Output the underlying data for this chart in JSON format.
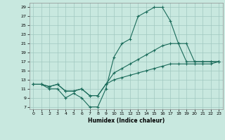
{
  "title": "",
  "xlabel": "Humidex (Indice chaleur)",
  "background_color": "#c8e8df",
  "grid_color": "#a0c8c0",
  "line_color": "#1a6b5a",
  "x_ticks": [
    0,
    1,
    2,
    3,
    4,
    5,
    6,
    7,
    8,
    9,
    10,
    11,
    12,
    13,
    14,
    15,
    16,
    17,
    18,
    19,
    20,
    21,
    22,
    23
  ],
  "y_ticks": [
    7,
    9,
    11,
    13,
    15,
    17,
    19,
    21,
    23,
    25,
    27,
    29
  ],
  "ylim": [
    6.5,
    30
  ],
  "xlim": [
    -0.5,
    23.5
  ],
  "line1_x": [
    0,
    1,
    2,
    3,
    4,
    5,
    6,
    7,
    8,
    9,
    10,
    11,
    12,
    13,
    14,
    15,
    16,
    17,
    18,
    19,
    20,
    21,
    22,
    23
  ],
  "line1_y": [
    12,
    12,
    11,
    11,
    9,
    10,
    9,
    7,
    7,
    11,
    18,
    21,
    22,
    27,
    28,
    29,
    29,
    26,
    21,
    17,
    17,
    17,
    17,
    17
  ],
  "line2_x": [
    0,
    1,
    2,
    3,
    4,
    5,
    6,
    7,
    8,
    9,
    10,
    11,
    12,
    13,
    14,
    15,
    16,
    17,
    18,
    19,
    20,
    21,
    22,
    23
  ],
  "line2_y": [
    12,
    12,
    11.5,
    12,
    10.5,
    10.5,
    11,
    9.5,
    9.5,
    12,
    14.5,
    15.5,
    16.5,
    17.5,
    18.5,
    19.5,
    20.5,
    21,
    21,
    21,
    17,
    17,
    17,
    17
  ],
  "line3_x": [
    0,
    1,
    2,
    3,
    4,
    5,
    6,
    7,
    8,
    9,
    10,
    11,
    12,
    13,
    14,
    15,
    16,
    17,
    18,
    19,
    20,
    21,
    22,
    23
  ],
  "line3_y": [
    12,
    12,
    11.5,
    12,
    10.5,
    10.5,
    11,
    9.5,
    9.5,
    12,
    13,
    13.5,
    14,
    14.5,
    15,
    15.5,
    16,
    16.5,
    16.5,
    16.5,
    16.5,
    16.5,
    16.5,
    17
  ]
}
